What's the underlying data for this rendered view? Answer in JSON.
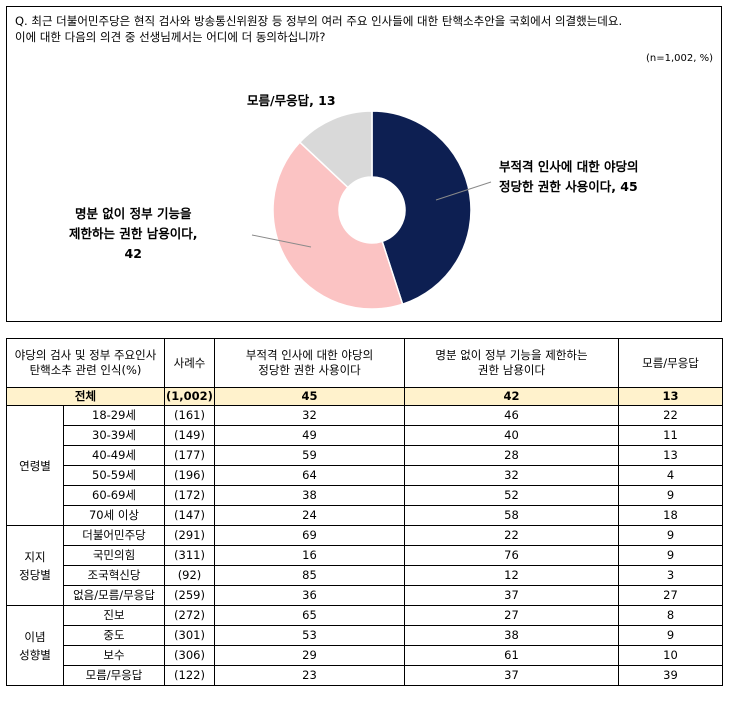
{
  "question": {
    "line1": "Q. 최근 더불어민주당은 현직 검사와 방송통신위원장 등 정부의 여러 주요 인사들에 대한 탄핵소추안을 국회에서 의결했는데요.",
    "line2": "이에 대한 다음의 의견 중 선생님께서는 어디에 더 동의하십니까?"
  },
  "sample_note": "(n=1,002,  %)",
  "chart_data": {
    "type": "pie",
    "donut": true,
    "slices": [
      {
        "label": "부적격 인사에 대한 야당의 정당한 권한 사용이다",
        "value": 45,
        "color": "#0d1f52"
      },
      {
        "label": "명분 없이 정부 기능을 제한하는 권한 남용이다",
        "value": 42,
        "color": "#fbc3c3"
      },
      {
        "label": "모름/무응답",
        "value": 13,
        "color": "#d9d9d9"
      }
    ],
    "labels": {
      "legit_line1": "부적격 인사에 대한 야당의",
      "legit_line2": "정당한 권한 사용이다, 45",
      "abuse_line1": "명분 없이 정부 기능을",
      "abuse_line2": "제한하는 권한 남용이다,",
      "abuse_line3": "42",
      "dk": "모름/무응답, 13"
    }
  },
  "table": {
    "header": {
      "category_line1": "야당의 검사 및 정부 주요인사",
      "category_line2": "탄핵소추 관련 인식(%)",
      "n": "사례수",
      "col1_line1": "부적격 인사에 대한 야당의",
      "col1_line2": "정당한 권한 사용이다",
      "col2_line1": "명분 없이 정부 기능을 제한하는",
      "col2_line2": "권한 남용이다",
      "col3": "모름/무응답"
    },
    "total": {
      "label": "전체",
      "n": "(1,002)",
      "v1": "45",
      "v2": "42",
      "v3": "13"
    },
    "groups": [
      {
        "name_lines": [
          "연령별"
        ],
        "rows": [
          {
            "label": "18-29세",
            "n": "(161)",
            "v1": "32",
            "v2": "46",
            "v3": "22"
          },
          {
            "label": "30-39세",
            "n": "(149)",
            "v1": "49",
            "v2": "40",
            "v3": "11"
          },
          {
            "label": "40-49세",
            "n": "(177)",
            "v1": "59",
            "v2": "28",
            "v3": "13"
          },
          {
            "label": "50-59세",
            "n": "(196)",
            "v1": "64",
            "v2": "32",
            "v3": "4"
          },
          {
            "label": "60-69세",
            "n": "(172)",
            "v1": "38",
            "v2": "52",
            "v3": "9"
          },
          {
            "label": "70세 이상",
            "n": "(147)",
            "v1": "24",
            "v2": "58",
            "v3": "18"
          }
        ]
      },
      {
        "name_lines": [
          "지지",
          "정당별"
        ],
        "rows": [
          {
            "label": "더불어민주당",
            "n": "(291)",
            "v1": "69",
            "v2": "22",
            "v3": "9"
          },
          {
            "label": "국민의힘",
            "n": "(311)",
            "v1": "16",
            "v2": "76",
            "v3": "9"
          },
          {
            "label": "조국혁신당",
            "n": "(92)",
            "v1": "85",
            "v2": "12",
            "v3": "3"
          },
          {
            "label": "없음/모름/무응답",
            "n": "(259)",
            "v1": "36",
            "v2": "37",
            "v3": "27"
          }
        ]
      },
      {
        "name_lines": [
          "이념",
          "성향별"
        ],
        "rows": [
          {
            "label": "진보",
            "n": "(272)",
            "v1": "65",
            "v2": "27",
            "v3": "8"
          },
          {
            "label": "중도",
            "n": "(301)",
            "v1": "53",
            "v2": "38",
            "v3": "9"
          },
          {
            "label": "보수",
            "n": "(306)",
            "v1": "29",
            "v2": "61",
            "v3": "10"
          },
          {
            "label": "모름/무응답",
            "n": "(122)",
            "v1": "23",
            "v2": "37",
            "v3": "39"
          }
        ]
      }
    ]
  }
}
